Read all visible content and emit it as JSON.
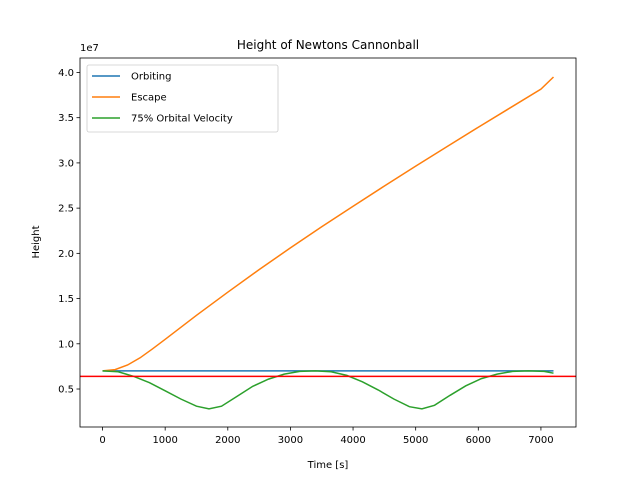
{
  "chart_data": {
    "type": "line",
    "title": "Height of Newtons Cannonball",
    "xlabel": "Time [s]",
    "ylabel": "Height",
    "y_offset_label": "1e7",
    "xlim": [
      -360,
      7560
    ],
    "ylim": [
      800000,
      41600000
    ],
    "x_ticks": [
      0,
      1000,
      2000,
      3000,
      4000,
      5000,
      6000,
      7000
    ],
    "x_tick_labels": [
      "0",
      "1000",
      "2000",
      "3000",
      "4000",
      "5000",
      "6000",
      "7000"
    ],
    "y_ticks": [
      5000000,
      10000000,
      15000000,
      20000000,
      25000000,
      30000000,
      35000000,
      40000000
    ],
    "y_tick_labels": [
      "0.5",
      "1.0",
      "1.5",
      "2.0",
      "2.5",
      "3.0",
      "3.5",
      "4.0"
    ],
    "grid": false,
    "legend_position": "upper-left",
    "series": [
      {
        "name": "Orbiting",
        "color": "#1f77b4",
        "x": [
          0,
          1000,
          2000,
          3000,
          4000,
          5000,
          6000,
          7200
        ],
        "y": [
          7000000,
          7000000,
          7000000,
          7000000,
          7000000,
          7000000,
          7000000,
          7000000
        ]
      },
      {
        "name": "Escape",
        "color": "#ff7f0e",
        "x": [
          0,
          200,
          400,
          600,
          800,
          1000,
          1500,
          2000,
          2500,
          3000,
          3500,
          4000,
          4500,
          5000,
          5500,
          6000,
          6500,
          7000,
          7200
        ],
        "y": [
          7000000,
          7150000,
          7650000,
          8450000,
          9450000,
          10500000,
          13150000,
          15700000,
          18200000,
          20600000,
          22950000,
          25200000,
          27450000,
          29650000,
          31800000,
          33950000,
          36050000,
          38150000,
          39500000
        ]
      },
      {
        "name": "75% Orbital Velocity",
        "color": "#2ca02c",
        "x": [
          0,
          250,
          500,
          750,
          1000,
          1250,
          1500,
          1700,
          1900,
          2150,
          2400,
          2650,
          2900,
          3150,
          3400,
          3650,
          3900,
          4150,
          4400,
          4650,
          4900,
          5100,
          5300,
          5550,
          5800,
          6050,
          6300,
          6550,
          6800,
          7050,
          7200
        ],
        "y": [
          7000000,
          6900000,
          6400000,
          5700000,
          4800000,
          3900000,
          3100000,
          2800000,
          3100000,
          4200000,
          5300000,
          6100000,
          6650000,
          6950000,
          7000000,
          6900000,
          6500000,
          5800000,
          4900000,
          3900000,
          3050000,
          2800000,
          3200000,
          4300000,
          5350000,
          6150000,
          6650000,
          6950000,
          7000000,
          6950000,
          6750000
        ]
      }
    ],
    "reference_lines": [
      {
        "y": 6400000,
        "color": "#ff0000"
      }
    ]
  }
}
